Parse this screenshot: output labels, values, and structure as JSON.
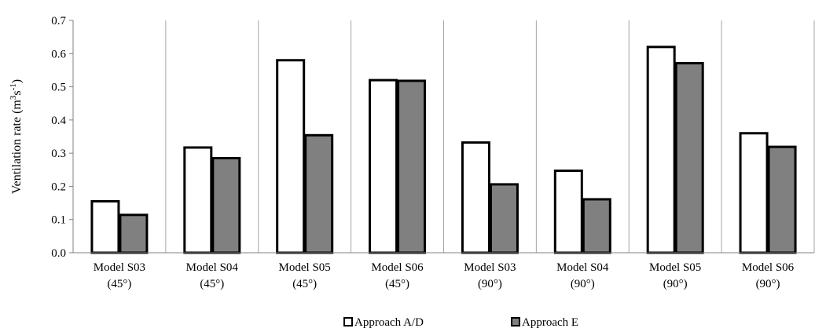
{
  "chart_data": {
    "type": "bar",
    "title": "",
    "xlabel": "",
    "ylabel": "Ventilation rate (m3s-1)",
    "ylabel_parts": {
      "main": "Ventilation rate (m",
      "sup1": "3",
      "mid": "s",
      "sup2": "-1",
      "end": ")"
    },
    "ylim": [
      0,
      0.7
    ],
    "yticks": [
      "0.0",
      "0.1",
      "0.2",
      "0.3",
      "0.4",
      "0.5",
      "0.6",
      "0.7"
    ],
    "ytick_values": [
      0,
      0.1,
      0.2,
      0.3,
      0.4,
      0.5,
      0.6,
      0.7
    ],
    "grid": "vertical-category-separators",
    "legend_position": "bottom",
    "categories": [
      [
        "Model S03",
        "(45°)"
      ],
      [
        "Model S04",
        "(45°)"
      ],
      [
        "Model S05",
        "(45°)"
      ],
      [
        "Model S06",
        "(45°)"
      ],
      [
        "Model S03",
        "(90°)"
      ],
      [
        "Model S04",
        "(90°)"
      ],
      [
        "Model S05",
        "(90°)"
      ],
      [
        "Model S06",
        "(90°)"
      ]
    ],
    "series": [
      {
        "name": "Approach A/D",
        "color": "#ffffff",
        "values": [
          0.155,
          0.317,
          0.58,
          0.52,
          0.332,
          0.247,
          0.62,
          0.36
        ]
      },
      {
        "name": "Approach E",
        "color": "#808080",
        "values": [
          0.114,
          0.285,
          0.354,
          0.518,
          0.206,
          0.161,
          0.571,
          0.319
        ]
      }
    ]
  }
}
